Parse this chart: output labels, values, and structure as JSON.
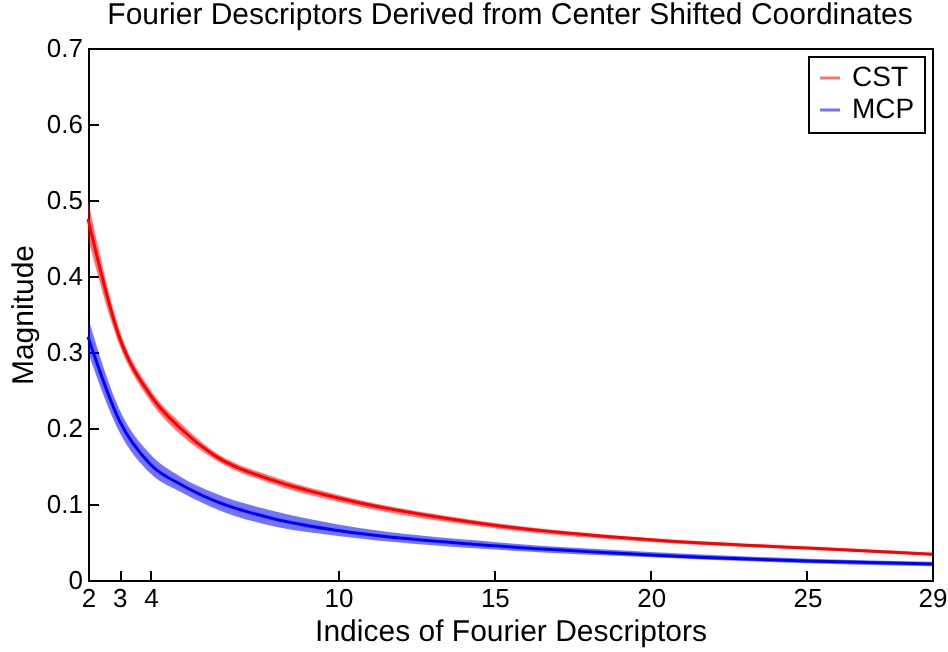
{
  "chart_data": {
    "type": "line",
    "title": "Fourier Descriptors Derived from Center Shifted Coordinates",
    "xlabel": "Indices of Fourier Descriptors",
    "ylabel": "Magnitude",
    "x": [
      2,
      3,
      4,
      5,
      6,
      8,
      10,
      15,
      20,
      25,
      29
    ],
    "series": [
      {
        "name": "CST",
        "color": "#ff0000",
        "values": [
          0.475,
          0.32,
          0.243,
          0.198,
          0.165,
          0.13,
          0.108,
          0.072,
          0.053,
          0.042,
          0.034
        ],
        "lower": [
          0.45,
          0.31,
          0.235,
          0.19,
          0.16,
          0.125,
          0.103,
          0.068,
          0.05,
          0.04,
          0.032
        ],
        "upper": [
          0.5,
          0.33,
          0.25,
          0.205,
          0.17,
          0.135,
          0.112,
          0.075,
          0.055,
          0.044,
          0.036
        ]
      },
      {
        "name": "MCP",
        "color": "#0000ff",
        "values": [
          0.32,
          0.21,
          0.152,
          0.125,
          0.105,
          0.08,
          0.065,
          0.045,
          0.033,
          0.025,
          0.021
        ],
        "lower": [
          0.3,
          0.195,
          0.14,
          0.115,
          0.095,
          0.07,
          0.058,
          0.04,
          0.03,
          0.022,
          0.018
        ],
        "upper": [
          0.345,
          0.225,
          0.165,
          0.135,
          0.115,
          0.09,
          0.073,
          0.05,
          0.037,
          0.028,
          0.024
        ]
      }
    ],
    "xlim": [
      2,
      29
    ],
    "xticks": [
      2,
      3,
      4,
      10,
      15,
      20,
      25,
      29
    ],
    "ylim": [
      0,
      0.7
    ],
    "yticks": [
      0,
      0.1,
      0.2,
      0.3,
      0.4,
      0.5,
      0.6,
      0.7
    ],
    "grid": false,
    "legend": "top right"
  }
}
